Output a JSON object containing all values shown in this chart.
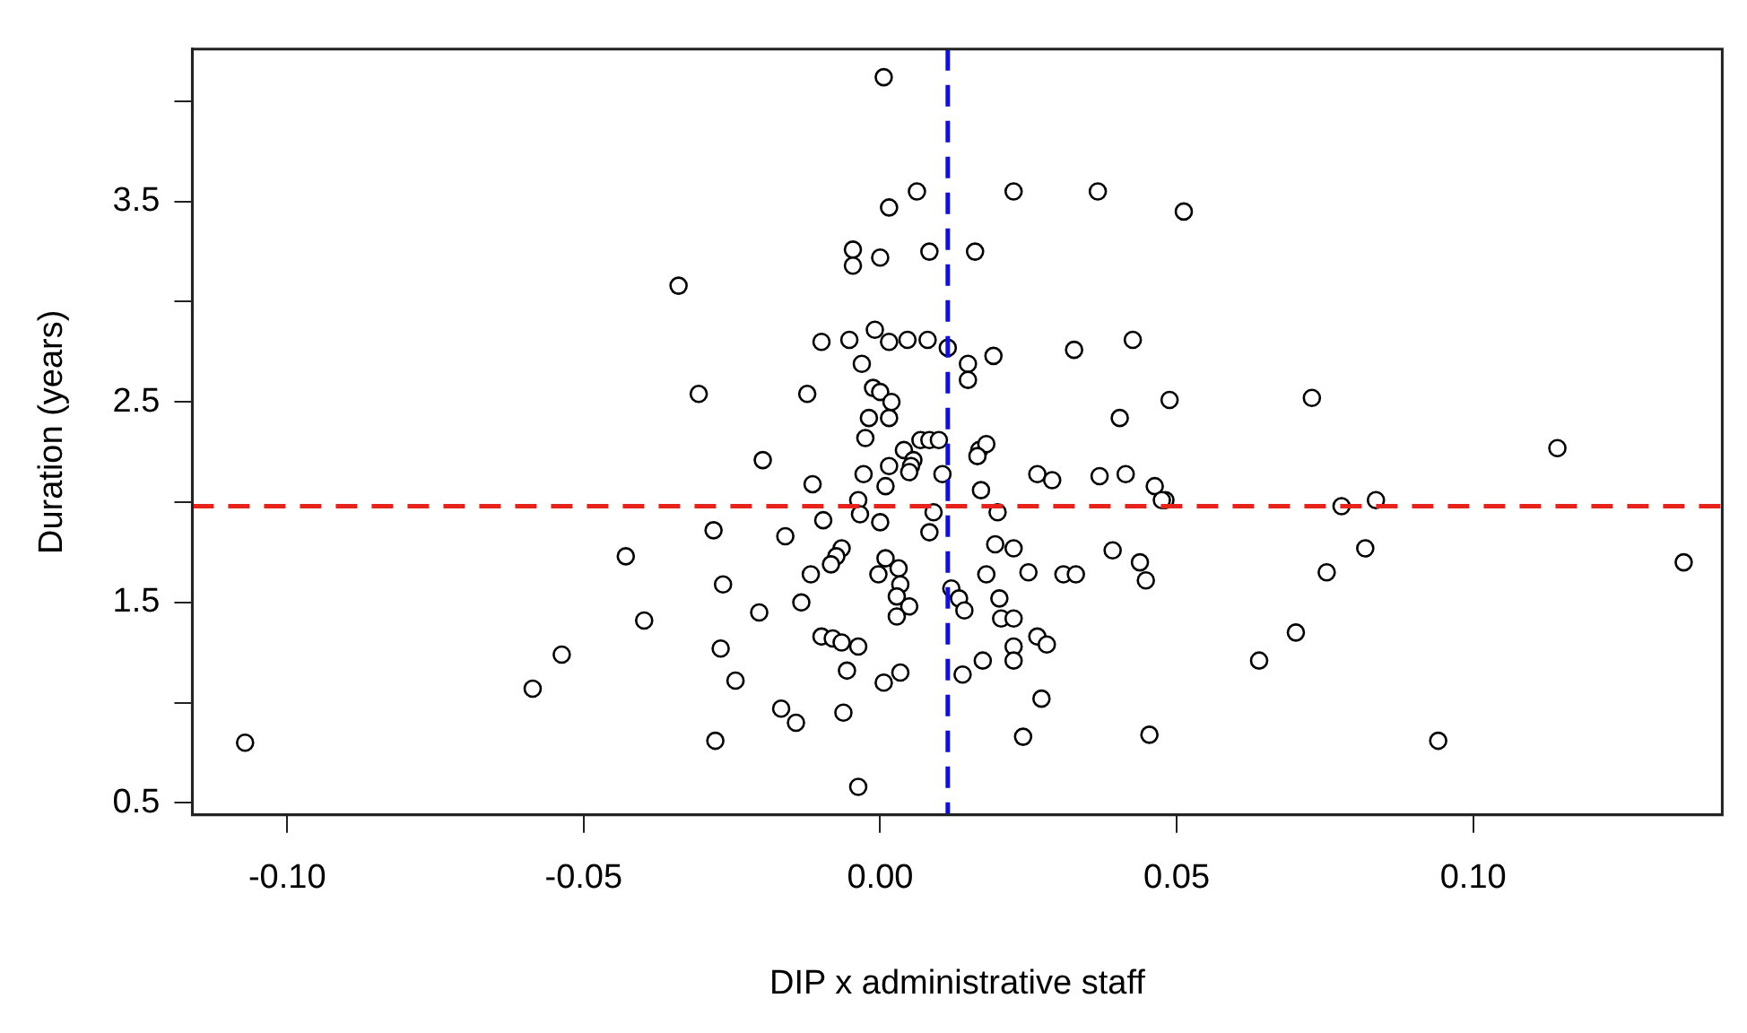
{
  "chart_data": {
    "type": "scatter",
    "xlabel": "DIP x administrative staff",
    "ylabel": "Duration (years)",
    "xlim": [
      -0.116,
      0.142
    ],
    "ylim": [
      0.44,
      4.26
    ],
    "xticks": [
      {
        "value": -0.1,
        "label": "-0.10"
      },
      {
        "value": -0.05,
        "label": "-0.05"
      },
      {
        "value": 0,
        "label": "0.00"
      },
      {
        "value": 0.05,
        "label": "0.05"
      },
      {
        "value": 0.1,
        "label": "0.10"
      }
    ],
    "yticks": [
      0.5,
      {
        "value": 1,
        "label": null
      },
      1.5,
      {
        "value": 2,
        "label": null
      },
      2.5,
      {
        "value": 3,
        "label": null
      },
      3.5,
      {
        "value": 4,
        "label": null
      }
    ],
    "grid": false,
    "legend": false,
    "marker": "circle",
    "series": [
      {
        "color": "#000000",
        "x": [
          0.0006,
          0.0015,
          0.0062,
          0.0225,
          0.0367,
          0.0512,
          -0.0046,
          -0.0046,
          0.0,
          0.0083,
          0.016,
          -0.034,
          -0.0099,
          -0.0052,
          -0.0009,
          0.0015,
          0.0046,
          0.008,
          0.0114,
          0.0191,
          0.0148,
          0.0148,
          -0.0031,
          0.0327,
          0.0426,
          -0.0306,
          -0.0123,
          -0.0012,
          0.0,
          0.0019,
          -0.0019,
          0.0015,
          0.0488,
          0.0404,
          0.0728,
          0.1142,
          0.0481,
          0.0778,
          0.0836,
          0.0818,
          0.0753,
          0.1355,
          0.0701,
          0.0639,
          0.0941,
          -0.0429,
          -0.0398,
          -0.0537,
          -0.0586,
          -0.1071,
          -0.0025,
          0.0068,
          0.0083,
          0.0099,
          0.004,
          0.0056,
          0.0052,
          0.0049,
          0.0167,
          0.0179,
          0.0164,
          -0.0198,
          0.0015,
          -0.0028,
          0.0009,
          -0.0114,
          0.0105,
          0.017,
          0.0265,
          0.029,
          0.037,
          0.0414,
          0.0463,
          0.0475,
          -0.0037,
          -0.0034,
          -0.0096,
          0.0,
          0.009,
          0.0198,
          0.0083,
          -0.0281,
          -0.016,
          0.0194,
          0.0225,
          0.0392,
          0.0438,
          0.0448,
          -0.0065,
          -0.0074,
          -0.0083,
          -0.0117,
          0.0009,
          0.0031,
          -0.0003,
          0.0034,
          0.0028,
          0.0049,
          0.0028,
          -0.0265,
          0.0179,
          0.025,
          0.0309,
          0.033,
          0.012,
          0.0133,
          0.0142,
          0.0201,
          0.0204,
          0.0225,
          -0.0133,
          -0.0204,
          -0.0269,
          -0.0099,
          -0.008,
          -0.0065,
          -0.0037,
          0.0225,
          0.0265,
          0.0281,
          0.0225,
          0.0173,
          0.0139,
          -0.0056,
          0.0034,
          0.0006,
          -0.0244,
          -0.0167,
          -0.0142,
          -0.0062,
          0.0272,
          -0.0278,
          0.0241,
          0.0454,
          -0.0037
        ],
        "values": [
          4.12,
          3.47,
          3.55,
          3.55,
          3.55,
          3.45,
          3.26,
          3.18,
          3.22,
          3.25,
          3.25,
          3.08,
          2.8,
          2.81,
          2.86,
          2.8,
          2.81,
          2.81,
          2.77,
          2.73,
          2.69,
          2.61,
          2.69,
          2.76,
          2.81,
          2.54,
          2.54,
          2.57,
          2.55,
          2.5,
          2.42,
          2.42,
          2.51,
          2.42,
          2.52,
          2.27,
          2.01,
          1.98,
          2.01,
          1.77,
          1.65,
          1.7,
          1.35,
          1.21,
          0.81,
          1.73,
          1.41,
          1.24,
          1.07,
          0.8,
          2.32,
          2.31,
          2.31,
          2.31,
          2.26,
          2.21,
          2.18,
          2.15,
          2.26,
          2.29,
          2.23,
          2.21,
          2.18,
          2.14,
          2.08,
          2.09,
          2.14,
          2.06,
          2.14,
          2.11,
          2.13,
          2.14,
          2.08,
          2.01,
          2.01,
          1.94,
          1.91,
          1.9,
          1.95,
          1.95,
          1.85,
          1.86,
          1.83,
          1.79,
          1.77,
          1.76,
          1.7,
          1.61,
          1.77,
          1.73,
          1.69,
          1.64,
          1.72,
          1.67,
          1.64,
          1.59,
          1.53,
          1.48,
          1.43,
          1.59,
          1.64,
          1.65,
          1.64,
          1.64,
          1.57,
          1.52,
          1.46,
          1.52,
          1.42,
          1.42,
          1.5,
          1.45,
          1.27,
          1.33,
          1.32,
          1.3,
          1.28,
          1.28,
          1.33,
          1.29,
          1.21,
          1.21,
          1.14,
          1.16,
          1.15,
          1.1,
          1.11,
          0.97,
          0.9,
          0.95,
          1.02,
          0.81,
          0.83,
          0.84,
          0.58
        ]
      }
    ],
    "ref_lines": [
      {
        "axis": "y",
        "value": 1.98,
        "color": "#e8231c",
        "line_style": "dashed"
      },
      {
        "axis": "x",
        "value": 0.0114,
        "color": "#1010d8",
        "line_style": "dashed"
      }
    ]
  }
}
